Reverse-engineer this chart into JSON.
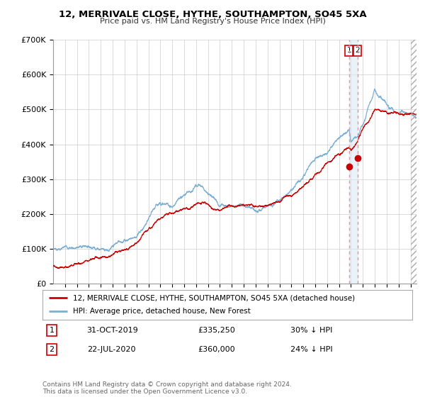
{
  "title": "12, MERRIVALE CLOSE, HYTHE, SOUTHAMPTON, SO45 5XA",
  "subtitle": "Price paid vs. HM Land Registry's House Price Index (HPI)",
  "hpi_color": "#7bafd4",
  "price_color": "#cc0000",
  "dashed_color": "#ff8888",
  "bg_color": "#ffffff",
  "grid_color": "#cccccc",
  "ylim": [
    0,
    700000
  ],
  "yticks": [
    0,
    100000,
    200000,
    300000,
    400000,
    500000,
    600000,
    700000
  ],
  "ytick_labels": [
    "£0",
    "£100K",
    "£200K",
    "£300K",
    "£400K",
    "£500K",
    "£600K",
    "£700K"
  ],
  "legend_house": "12, MERRIVALE CLOSE, HYTHE, SOUTHAMPTON, SO45 5XA (detached house)",
  "legend_hpi": "HPI: Average price, detached house, New Forest",
  "transaction1_date": "31-OCT-2019",
  "transaction1_price": "£335,250",
  "transaction1_pct": "30% ↓ HPI",
  "transaction2_date": "22-JUL-2020",
  "transaction2_price": "£360,000",
  "transaction2_pct": "24% ↓ HPI",
  "footer": "Contains HM Land Registry data © Crown copyright and database right 2024.\nThis data is licensed under the Open Government Licence v3.0.",
  "sale1_year": 2019.83,
  "sale1_value": 335250,
  "sale2_year": 2020.55,
  "sale2_value": 360000,
  "xmin": 1995.0,
  "xmax": 2025.5
}
